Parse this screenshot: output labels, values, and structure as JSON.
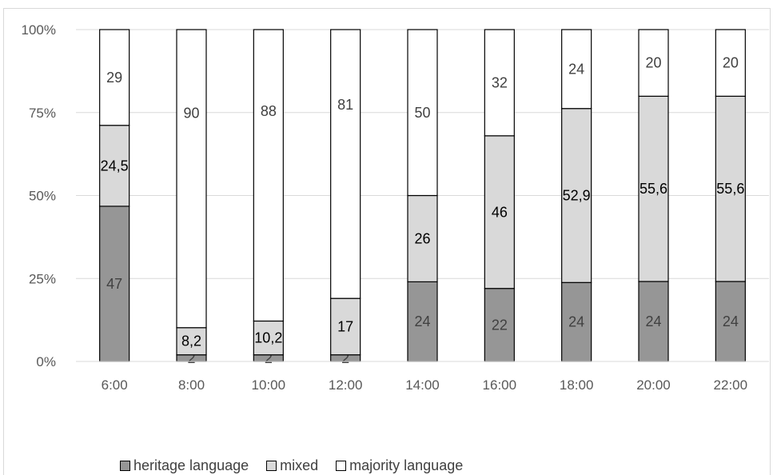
{
  "chart_data": {
    "type": "bar",
    "stacked": true,
    "normalized": true,
    "categories": [
      "6:00",
      "8:00",
      "10:00",
      "12:00",
      "14:00",
      "16:00",
      "18:00",
      "20:00",
      "22:00"
    ],
    "series": [
      {
        "name": "heritage language",
        "color": "#969696",
        "values": [
          47,
          2,
          2,
          2,
          24,
          22,
          24,
          24,
          24
        ],
        "labels": [
          "47",
          "2",
          "2",
          "2",
          "24",
          "22",
          "24",
          "24",
          "24"
        ]
      },
      {
        "name": "mixed",
        "color": "#d9d9d9",
        "values": [
          24.5,
          8.2,
          10.2,
          17,
          26,
          46,
          52.9,
          55.6,
          55.6
        ],
        "labels": [
          "24,5",
          "8,2",
          "10,2",
          "17",
          "26",
          "46",
          "52,9",
          "55,6",
          "55,6"
        ]
      },
      {
        "name": "majority language",
        "color": "#ffffff",
        "values": [
          29,
          90,
          88,
          81,
          50,
          32,
          24,
          20,
          20
        ],
        "labels": [
          "29",
          "90",
          "88",
          "81",
          "50",
          "32",
          "24",
          "20",
          "20"
        ]
      }
    ],
    "yticks": [
      "0%",
      "25%",
      "50%",
      "75%",
      "100%"
    ],
    "ylim": [
      0,
      100
    ],
    "grid": true,
    "legend": "bottom-left"
  }
}
